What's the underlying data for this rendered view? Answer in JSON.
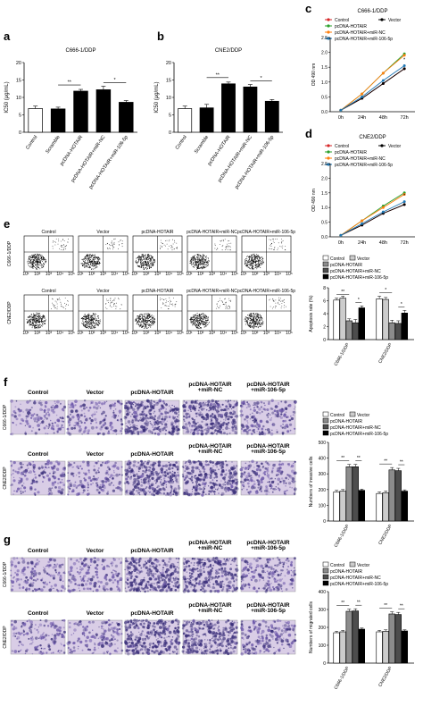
{
  "colors": {
    "white": "#ffffff",
    "black": "#000000",
    "gray": "#8c8c8c",
    "lightgray": "#cccccc",
    "darkgray": "#4d4d4d",
    "stainBg": "#d9cde6",
    "stainDense": "#3a2f7a",
    "stainMid": "#6a55a8"
  },
  "panel_letters": {
    "a": "a",
    "b": "b",
    "c": "c",
    "d": "d",
    "e": "e",
    "f": "f",
    "g": "g"
  },
  "groups": [
    "Control",
    "Scramble",
    "pcDNA-HOTAIR",
    "pcDNA-HOTAIR+miR-NC",
    "pcDNA-HOTAIR+miR-106-5p"
  ],
  "legend_items": {
    "control": "Control",
    "vector": "Vector",
    "hotair": "pcDNA-HOTAIR",
    "mirnc": "pcDNA-HOTAIR+miR-NC",
    "mir106": "pcDNA-HOTAIR+miR-106-5p"
  },
  "cell_lines": {
    "c666": "C666-1/DDP",
    "cne2": "CNE2/DDP"
  },
  "flow": {
    "col_titles": [
      "Control",
      "Vector",
      "pcDNA-HOTAIR",
      "pcDNA-HOTAIR+miR-NC",
      "pcDNA-HOTAIR+miR-106-5p"
    ],
    "x_ticks": [
      "10¹",
      "10²",
      "10³",
      "10⁴",
      "10⁵"
    ],
    "y_ticks": [
      "10¹",
      "10²",
      "10³",
      "10⁴",
      "10⁵"
    ]
  },
  "stain_titles": {
    "row1": [
      "Control",
      "Vector",
      "pcDNA-HOTAIR",
      "pcDNA-HOTAIR\n+miR-NC",
      "pcDNA-HOTAIR\n+miR-106-5p"
    ]
  },
  "sig": {
    "two": "**",
    "one": "*"
  },
  "chart_data": [
    {
      "id": "a",
      "type": "bar",
      "title": "C666-1/DDP",
      "ylabel": "IC50 (μg/mL)",
      "ylim": [
        0,
        20
      ],
      "yticks": [
        "0",
        "5",
        "10",
        "15",
        "20"
      ],
      "categories": [
        "Control",
        "Scramble",
        "pcDNA-HOTAIR",
        "pcDNA-HOTAIR+miR-NC",
        "pcDNA-HOTAIR+miR-106-5p"
      ],
      "values": [
        6.8,
        6.7,
        11.8,
        12.2,
        8.6
      ],
      "errors": [
        0.7,
        0.5,
        0.5,
        1.0,
        0.5
      ],
      "colors": [
        "#ffffff",
        "#000000",
        "#000000",
        "#000000",
        "#000000"
      ],
      "annotations": [
        "**",
        "*"
      ]
    },
    {
      "id": "b",
      "type": "bar",
      "title": "CNE2/DDP",
      "ylabel": "IC50 (μg/mL)",
      "ylim": [
        0,
        20
      ],
      "yticks": [
        "0",
        "5",
        "10",
        "15",
        "20"
      ],
      "categories": [
        "Control",
        "Scramble",
        "pcDNA-HOTAIR",
        "pcDNA-HOTAIR+miR-NC",
        "pcDNA-HOTAIR+miR-106-5p"
      ],
      "values": [
        6.8,
        7.0,
        13.9,
        13.0,
        8.9
      ],
      "errors": [
        0.7,
        1.0,
        0.5,
        0.7,
        0.5
      ],
      "colors": [
        "#ffffff",
        "#000000",
        "#000000",
        "#000000",
        "#000000"
      ],
      "annotations": [
        "**",
        "*"
      ]
    },
    {
      "id": "c",
      "type": "line",
      "title": "C666-1/DDP",
      "ylabel": "OD 490 nm",
      "ylim": [
        0,
        2.5
      ],
      "yticks": [
        "0.0",
        "0.5",
        "1.0",
        "1.5",
        "2.0",
        "2.5"
      ],
      "x": [
        "0h",
        "24h",
        "48h",
        "72h"
      ],
      "series": [
        {
          "name": "Control",
          "color": "#d62728",
          "values": [
            0.05,
            0.45,
            0.95,
            1.45
          ]
        },
        {
          "name": "Vector",
          "color": "#000000",
          "values": [
            0.05,
            0.45,
            0.95,
            1.45
          ]
        },
        {
          "name": "pcDNA-HOTAIR",
          "color": "#2ca02c",
          "values": [
            0.05,
            0.6,
            1.3,
            1.95
          ]
        },
        {
          "name": "pcDNA-HOTAIR+miR-NC",
          "color": "#ff7f0e",
          "values": [
            0.05,
            0.6,
            1.3,
            1.9
          ]
        },
        {
          "name": "pcDNA-HOTAIR+miR-106-5p",
          "color": "#1f77b4",
          "values": [
            0.05,
            0.5,
            1.05,
            1.55
          ]
        }
      ],
      "annotations": [
        "*"
      ]
    },
    {
      "id": "d",
      "type": "line",
      "title": "CNE2/DDP",
      "ylabel": "OD 490 nm",
      "ylim": [
        0,
        2.5
      ],
      "yticks": [
        "0.0",
        "0.5",
        "1.0",
        "1.5",
        "2.0",
        "2.5"
      ],
      "x": [
        "0h",
        "24h",
        "48h",
        "72h"
      ],
      "series": [
        {
          "name": "Control",
          "color": "#d62728",
          "values": [
            0.05,
            0.4,
            0.8,
            1.1
          ]
        },
        {
          "name": "Vector",
          "color": "#000000",
          "values": [
            0.05,
            0.4,
            0.8,
            1.1
          ]
        },
        {
          "name": "pcDNA-HOTAIR",
          "color": "#2ca02c",
          "values": [
            0.05,
            0.55,
            1.05,
            1.5
          ]
        },
        {
          "name": "pcDNA-HOTAIR+miR-NC",
          "color": "#ff7f0e",
          "values": [
            0.05,
            0.55,
            1.0,
            1.45
          ]
        },
        {
          "name": "pcDNA-HOTAIR+miR-106-5p",
          "color": "#1f77b4",
          "values": [
            0.05,
            0.45,
            0.85,
            1.2
          ]
        }
      ],
      "annotations": [
        "*"
      ]
    },
    {
      "id": "e",
      "type": "bar",
      "ylabel": "Apoptosis rate (%)",
      "ylim": [
        0,
        8
      ],
      "yticks": [
        "0",
        "2",
        "4",
        "6",
        "8"
      ],
      "categories": [
        "C666-1/DDP",
        "CNE2/DDP"
      ],
      "series": [
        {
          "name": "Control",
          "color": "#ffffff",
          "values": [
            6.1,
            6.3
          ],
          "errors": [
            0.3,
            0.4
          ]
        },
        {
          "name": "Vector",
          "color": "#cccccc",
          "values": [
            6.4,
            6.2
          ],
          "errors": [
            0.3,
            0.3
          ]
        },
        {
          "name": "pcDNA-HOTAIR",
          "color": "#8c8c8c",
          "values": [
            2.9,
            2.6
          ],
          "errors": [
            0.3,
            0.4
          ]
        },
        {
          "name": "pcDNA-HOTAIR+miR-NC",
          "color": "#4d4d4d",
          "values": [
            2.6,
            2.5
          ],
          "errors": [
            0.5,
            0.4
          ]
        },
        {
          "name": "pcDNA-HOTAIR+miR-106-5p",
          "color": "#000000",
          "values": [
            4.9,
            4.1
          ],
          "errors": [
            0.3,
            0.4
          ]
        }
      ],
      "annotations": [
        "**",
        "*",
        "*",
        "*"
      ]
    },
    {
      "id": "f",
      "type": "bar",
      "ylabel": "Numbers of invasive cells",
      "ylim": [
        0,
        500
      ],
      "yticks": [
        "0",
        "100",
        "200",
        "300",
        "400",
        "500"
      ],
      "categories": [
        "C666-1/DDP",
        "CNE2/DDP"
      ],
      "series": [
        {
          "name": "Control",
          "color": "#ffffff",
          "values": [
            185,
            175
          ],
          "errors": [
            10,
            10
          ]
        },
        {
          "name": "Vector",
          "color": "#cccccc",
          "values": [
            190,
            180
          ],
          "errors": [
            10,
            10
          ]
        },
        {
          "name": "pcDNA-HOTAIR",
          "color": "#8c8c8c",
          "values": [
            345,
            325
          ],
          "errors": [
            15,
            15
          ]
        },
        {
          "name": "pcDNA-HOTAIR+miR-NC",
          "color": "#4d4d4d",
          "values": [
            345,
            320
          ],
          "errors": [
            15,
            15
          ]
        },
        {
          "name": "pcDNA-HOTAIR+miR-106-5p",
          "color": "#000000",
          "values": [
            195,
            190
          ],
          "errors": [
            8,
            8
          ]
        }
      ],
      "annotations": [
        "**",
        "**",
        "**",
        "**"
      ]
    },
    {
      "id": "g",
      "type": "bar",
      "ylabel": "Numbers of migrated cells",
      "ylim": [
        0,
        400
      ],
      "yticks": [
        "0",
        "100",
        "200",
        "300",
        "400"
      ],
      "categories": [
        "C666-1/DDP",
        "CNE2/DDP"
      ],
      "series": [
        {
          "name": "Control",
          "color": "#ffffff",
          "values": [
            170,
            175
          ],
          "errors": [
            8,
            8
          ]
        },
        {
          "name": "Vector",
          "color": "#cccccc",
          "values": [
            175,
            178
          ],
          "errors": [
            8,
            8
          ]
        },
        {
          "name": "pcDNA-HOTAIR",
          "color": "#8c8c8c",
          "values": [
            290,
            275
          ],
          "errors": [
            12,
            12
          ]
        },
        {
          "name": "pcDNA-HOTAIR+miR-NC",
          "color": "#4d4d4d",
          "values": [
            292,
            272
          ],
          "errors": [
            12,
            12
          ]
        },
        {
          "name": "pcDNA-HOTAIR+miR-106-5p",
          "color": "#000000",
          "values": [
            190,
            180
          ],
          "errors": [
            6,
            6
          ]
        }
      ],
      "annotations": [
        "**",
        "**",
        "**",
        "**"
      ]
    }
  ]
}
